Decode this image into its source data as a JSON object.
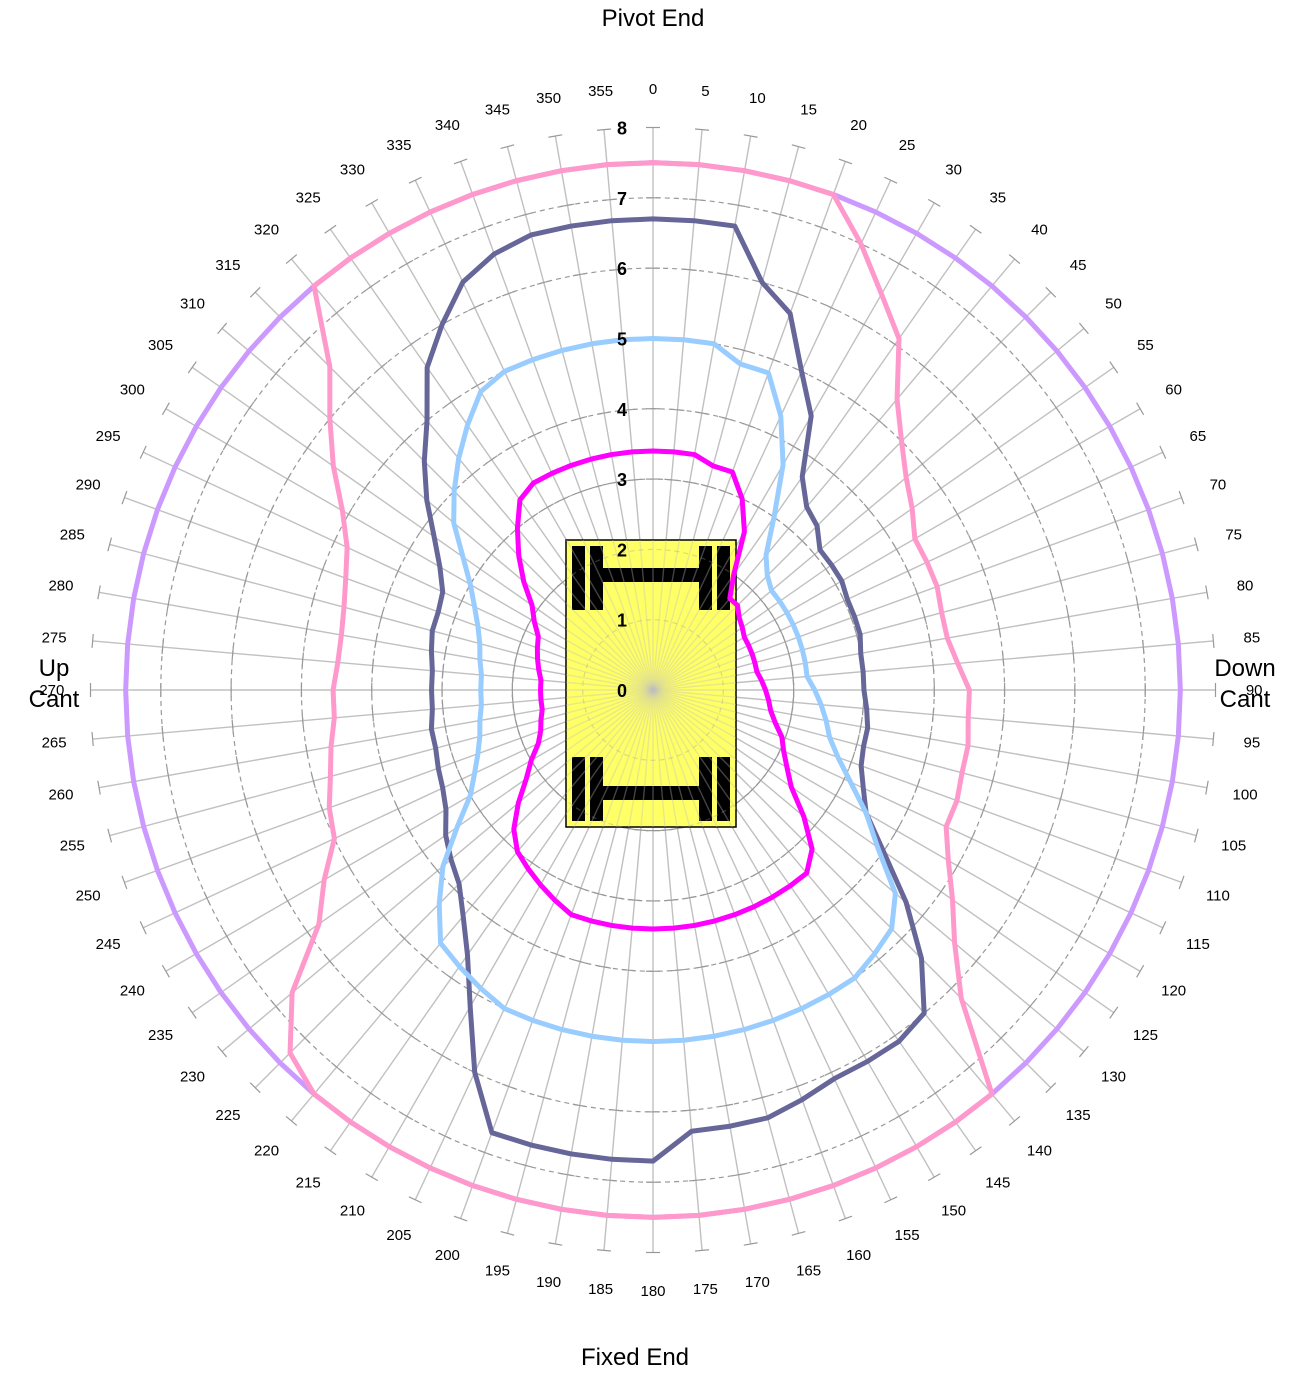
{
  "chart_data": {
    "type": "radar",
    "angle_unit": "degrees",
    "angle_step": 5,
    "angles": [
      0,
      5,
      10,
      15,
      20,
      25,
      30,
      35,
      40,
      45,
      50,
      55,
      60,
      65,
      70,
      75,
      80,
      85,
      90,
      95,
      100,
      105,
      110,
      115,
      120,
      125,
      130,
      135,
      140,
      145,
      150,
      155,
      160,
      165,
      170,
      175,
      180,
      185,
      190,
      195,
      200,
      205,
      210,
      215,
      220,
      225,
      230,
      235,
      240,
      245,
      250,
      255,
      260,
      265,
      270,
      275,
      280,
      285,
      290,
      295,
      300,
      305,
      310,
      315,
      320,
      325,
      330,
      335,
      340,
      345,
      350,
      355
    ],
    "angle_labels": [
      "0",
      "5",
      "10",
      "15",
      "20",
      "25",
      "30",
      "35",
      "40",
      "45",
      "50",
      "55",
      "60",
      "65",
      "70",
      "75",
      "80",
      "85",
      "90",
      "95",
      "100",
      "105",
      "110",
      "115",
      "120",
      "125",
      "130",
      "135",
      "140",
      "145",
      "150",
      "155",
      "160",
      "165",
      "170",
      "175",
      "180",
      "185",
      "190",
      "195",
      "200",
      "205",
      "210",
      "215",
      "220",
      "225",
      "230",
      "235",
      "240",
      "245",
      "250",
      "255",
      "260",
      "265",
      "270",
      "275",
      "280",
      "285",
      "290",
      "295",
      "300",
      "305",
      "310",
      "315",
      "320",
      "325",
      "330",
      "335",
      "340",
      "345",
      "350",
      "355"
    ],
    "rlim": [
      0,
      8
    ],
    "r_ticks": [
      0,
      1,
      2,
      3,
      4,
      5,
      6,
      7,
      8
    ],
    "r_tick_labels": [
      "0",
      "1",
      "2",
      "3",
      "4",
      "5",
      "6",
      "7",
      "8"
    ],
    "direction_labels": {
      "top": "Pivot End",
      "bottom": "Fixed End",
      "left_line1": "Up",
      "left_line2": "Cant",
      "right_line1": "Down",
      "right_line2": "Cant"
    },
    "grid": true,
    "series": [
      {
        "color": "#cc99ff",
        "values": [
          7.5,
          7.5,
          7.5,
          7.5,
          7.5,
          7.5,
          7.5,
          7.5,
          7.5,
          7.5,
          7.5,
          7.5,
          7.5,
          7.5,
          7.5,
          7.5,
          7.5,
          7.5,
          7.5,
          7.5,
          7.5,
          7.5,
          7.5,
          7.5,
          7.5,
          7.5,
          7.5,
          7.5,
          7.5,
          7.5,
          7.5,
          7.5,
          7.5,
          7.5,
          7.5,
          7.5,
          7.5,
          7.5,
          7.5,
          7.5,
          7.5,
          7.5,
          7.5,
          7.5,
          7.5,
          7.5,
          7.5,
          7.5,
          7.5,
          7.5,
          7.5,
          7.5,
          7.5,
          7.5,
          7.5,
          7.5,
          7.5,
          7.5,
          7.5,
          7.5,
          7.5,
          7.5,
          7.5,
          7.5,
          7.5,
          7.5,
          7.5,
          7.5,
          7.5,
          7.5,
          7.5,
          7.5
        ]
      },
      {
        "color": "#ff99cc",
        "values": [
          7.5,
          7.5,
          7.5,
          7.5,
          7.5,
          7.0,
          6.5,
          6.1,
          5.4,
          5.0,
          4.7,
          4.5,
          4.3,
          4.3,
          4.3,
          4.25,
          4.25,
          4.35,
          4.5,
          4.5,
          4.55,
          4.55,
          4.6,
          4.6,
          4.85,
          5.2,
          5.6,
          6.2,
          7.5,
          7.5,
          7.5,
          7.5,
          7.5,
          7.5,
          7.5,
          7.5,
          7.5,
          7.5,
          7.5,
          7.5,
          7.5,
          7.5,
          7.5,
          7.5,
          7.5,
          7.3,
          6.7,
          5.8,
          5.4,
          5.0,
          4.9,
          4.75,
          4.65,
          4.55,
          4.55,
          4.5,
          4.5,
          4.55,
          4.65,
          4.8,
          5.1,
          5.55,
          6.0,
          6.5,
          7.5,
          7.5,
          7.5,
          7.5,
          7.5,
          7.5,
          7.5,
          7.5
        ]
      },
      {
        "color": "#666699",
        "values": [
          6.7,
          6.7,
          6.7,
          6.0,
          5.7,
          5.0,
          4.5,
          3.7,
          3.4,
          3.3,
          3.1,
          3.1,
          3.1,
          3.05,
          3.05,
          3.05,
          3.0,
          3.0,
          3.0,
          3.05,
          3.1,
          3.1,
          3.15,
          3.3,
          3.5,
          4.0,
          4.7,
          5.4,
          6.0,
          6.1,
          6.1,
          6.1,
          6.2,
          6.3,
          6.3,
          6.3,
          6.7,
          6.7,
          6.7,
          6.7,
          6.7,
          6.0,
          5.2,
          4.6,
          4.2,
          3.9,
          3.75,
          3.6,
          3.4,
          3.3,
          3.25,
          3.2,
          3.2,
          3.15,
          3.15,
          3.15,
          3.2,
          3.25,
          3.25,
          3.3,
          3.5,
          3.8,
          4.2,
          4.6,
          5.0,
          5.6,
          6.0,
          6.4,
          6.6,
          6.7,
          6.7,
          6.7
        ]
      },
      {
        "color": "#99ccff",
        "values": [
          5.0,
          5.0,
          5.0,
          4.8,
          4.8,
          4.3,
          3.7,
          3.0,
          2.5,
          2.3,
          2.2,
          2.2,
          2.2,
          2.2,
          2.2,
          2.2,
          2.2,
          2.2,
          2.3,
          2.4,
          2.5,
          2.6,
          2.8,
          3.1,
          3.5,
          3.9,
          4.5,
          4.8,
          4.9,
          5.0,
          5.0,
          5.0,
          5.0,
          5.0,
          5.0,
          5.0,
          5.0,
          5.0,
          5.0,
          5.0,
          5.0,
          5.0,
          4.9,
          4.8,
          4.7,
          4.3,
          3.9,
          3.4,
          3.0,
          2.8,
          2.65,
          2.55,
          2.5,
          2.45,
          2.45,
          2.45,
          2.5,
          2.55,
          2.65,
          2.8,
          3.0,
          3.3,
          3.7,
          4.0,
          4.3,
          4.6,
          4.9,
          5.0,
          5.0,
          5.0,
          5.0,
          5.0
        ]
      },
      {
        "color": "#ff00ff",
        "values": [
          3.4,
          3.4,
          3.4,
          3.3,
          3.3,
          3.0,
          2.6,
          2.0,
          1.7,
          1.7,
          1.6,
          1.55,
          1.5,
          1.5,
          1.5,
          1.5,
          1.5,
          1.55,
          1.6,
          1.65,
          1.7,
          1.8,
          1.95,
          2.05,
          2.2,
          2.4,
          2.8,
          3.2,
          3.4,
          3.4,
          3.4,
          3.4,
          3.4,
          3.4,
          3.4,
          3.4,
          3.4,
          3.4,
          3.4,
          3.4,
          3.4,
          3.3,
          3.2,
          3.1,
          3.0,
          2.8,
          2.5,
          2.2,
          2.0,
          1.8,
          1.7,
          1.65,
          1.6,
          1.6,
          1.6,
          1.6,
          1.65,
          1.7,
          1.75,
          1.8,
          1.95,
          2.1,
          2.4,
          2.7,
          3.0,
          3.3,
          3.4,
          3.4,
          3.4,
          3.4,
          3.4,
          3.4
        ]
      }
    ],
    "center_vehicle_icon": "truck-top-view-icon",
    "center_vehicle_color": "#ffff66"
  }
}
